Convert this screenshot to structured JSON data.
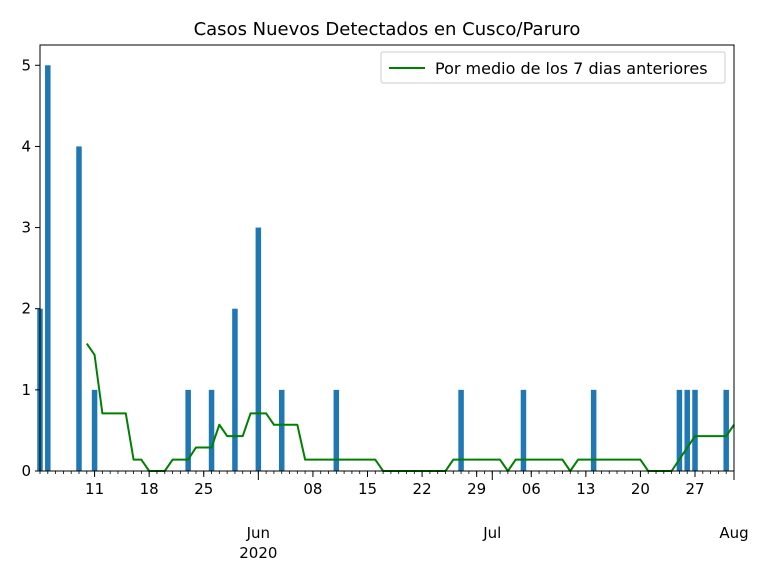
{
  "chart_data": {
    "type": "bar",
    "title": "Casos Nuevos Detectados en Cusco/Paruro",
    "xlabel": "",
    "ylabel": "",
    "ylim": [
      0,
      5.25
    ],
    "yticks": [
      0,
      1,
      2,
      3,
      4,
      5
    ],
    "x_range": [
      "2020-05-04",
      "2020-08-01"
    ],
    "x_minor_ticks": "daily",
    "x_tick_labels": [
      {
        "date": "2020-05-11",
        "label": "11"
      },
      {
        "date": "2020-05-18",
        "label": "18"
      },
      {
        "date": "2020-05-25",
        "label": "25"
      },
      {
        "date": "2020-06-08",
        "label": "08"
      },
      {
        "date": "2020-06-15",
        "label": "15"
      },
      {
        "date": "2020-06-22",
        "label": "22"
      },
      {
        "date": "2020-06-29",
        "label": "29"
      },
      {
        "date": "2020-07-06",
        "label": "06"
      },
      {
        "date": "2020-07-13",
        "label": "13"
      },
      {
        "date": "2020-07-20",
        "label": "20"
      },
      {
        "date": "2020-07-27",
        "label": "27"
      }
    ],
    "x_major_labels": [
      {
        "date": "2020-06-01",
        "line1": "Jun",
        "line2": "2020"
      },
      {
        "date": "2020-07-01",
        "line1": "Jul",
        "line2": ""
      },
      {
        "date": "2020-08-01",
        "line1": "Aug",
        "line2": ""
      }
    ],
    "bars": [
      {
        "date": "2020-05-04",
        "value": 2
      },
      {
        "date": "2020-05-05",
        "value": 5
      },
      {
        "date": "2020-05-09",
        "value": 4
      },
      {
        "date": "2020-05-11",
        "value": 1
      },
      {
        "date": "2020-05-23",
        "value": 1
      },
      {
        "date": "2020-05-26",
        "value": 1
      },
      {
        "date": "2020-05-29",
        "value": 2
      },
      {
        "date": "2020-06-01",
        "value": 3
      },
      {
        "date": "2020-06-04",
        "value": 1
      },
      {
        "date": "2020-06-11",
        "value": 1
      },
      {
        "date": "2020-06-27",
        "value": 1
      },
      {
        "date": "2020-07-05",
        "value": 1
      },
      {
        "date": "2020-07-14",
        "value": 1
      },
      {
        "date": "2020-07-25",
        "value": 1
      },
      {
        "date": "2020-07-26",
        "value": 1
      },
      {
        "date": "2020-07-27",
        "value": 1
      },
      {
        "date": "2020-07-31",
        "value": 1
      }
    ],
    "bar_color": "#1f77b4",
    "series": [
      {
        "name": "Por medio de los 7 dias anteriores",
        "color": "#008000",
        "points": [
          {
            "date": "2020-05-10",
            "value": 1.57
          },
          {
            "date": "2020-05-11",
            "value": 1.43
          },
          {
            "date": "2020-05-12",
            "value": 0.71
          },
          {
            "date": "2020-05-15",
            "value": 0.71
          },
          {
            "date": "2020-05-16",
            "value": 0.14
          },
          {
            "date": "2020-05-17",
            "value": 0.14
          },
          {
            "date": "2020-05-18",
            "value": 0
          },
          {
            "date": "2020-05-20",
            "value": 0
          },
          {
            "date": "2020-05-21",
            "value": 0.14
          },
          {
            "date": "2020-05-23",
            "value": 0.14
          },
          {
            "date": "2020-05-24",
            "value": 0.29
          },
          {
            "date": "2020-05-26",
            "value": 0.29
          },
          {
            "date": "2020-05-27",
            "value": 0.57
          },
          {
            "date": "2020-05-28",
            "value": 0.43
          },
          {
            "date": "2020-05-30",
            "value": 0.43
          },
          {
            "date": "2020-05-31",
            "value": 0.71
          },
          {
            "date": "2020-06-02",
            "value": 0.71
          },
          {
            "date": "2020-06-03",
            "value": 0.57
          },
          {
            "date": "2020-06-06",
            "value": 0.57
          },
          {
            "date": "2020-06-07",
            "value": 0.14
          },
          {
            "date": "2020-06-16",
            "value": 0.14
          },
          {
            "date": "2020-06-17",
            "value": 0
          },
          {
            "date": "2020-06-25",
            "value": 0
          },
          {
            "date": "2020-06-26",
            "value": 0.14
          },
          {
            "date": "2020-07-02",
            "value": 0.14
          },
          {
            "date": "2020-07-03",
            "value": 0
          },
          {
            "date": "2020-07-04",
            "value": 0.14
          },
          {
            "date": "2020-07-10",
            "value": 0.14
          },
          {
            "date": "2020-07-11",
            "value": 0
          },
          {
            "date": "2020-07-12",
            "value": 0.14
          },
          {
            "date": "2020-07-20",
            "value": 0.14
          },
          {
            "date": "2020-07-21",
            "value": 0
          },
          {
            "date": "2020-07-24",
            "value": 0
          },
          {
            "date": "2020-07-27",
            "value": 0.43
          },
          {
            "date": "2020-07-31",
            "value": 0.43
          },
          {
            "date": "2020-08-01",
            "value": 0.57
          }
        ]
      }
    ],
    "legend": {
      "placement": "top-right",
      "label": "Por medio de los 7 dias anteriores"
    },
    "grid": false
  }
}
